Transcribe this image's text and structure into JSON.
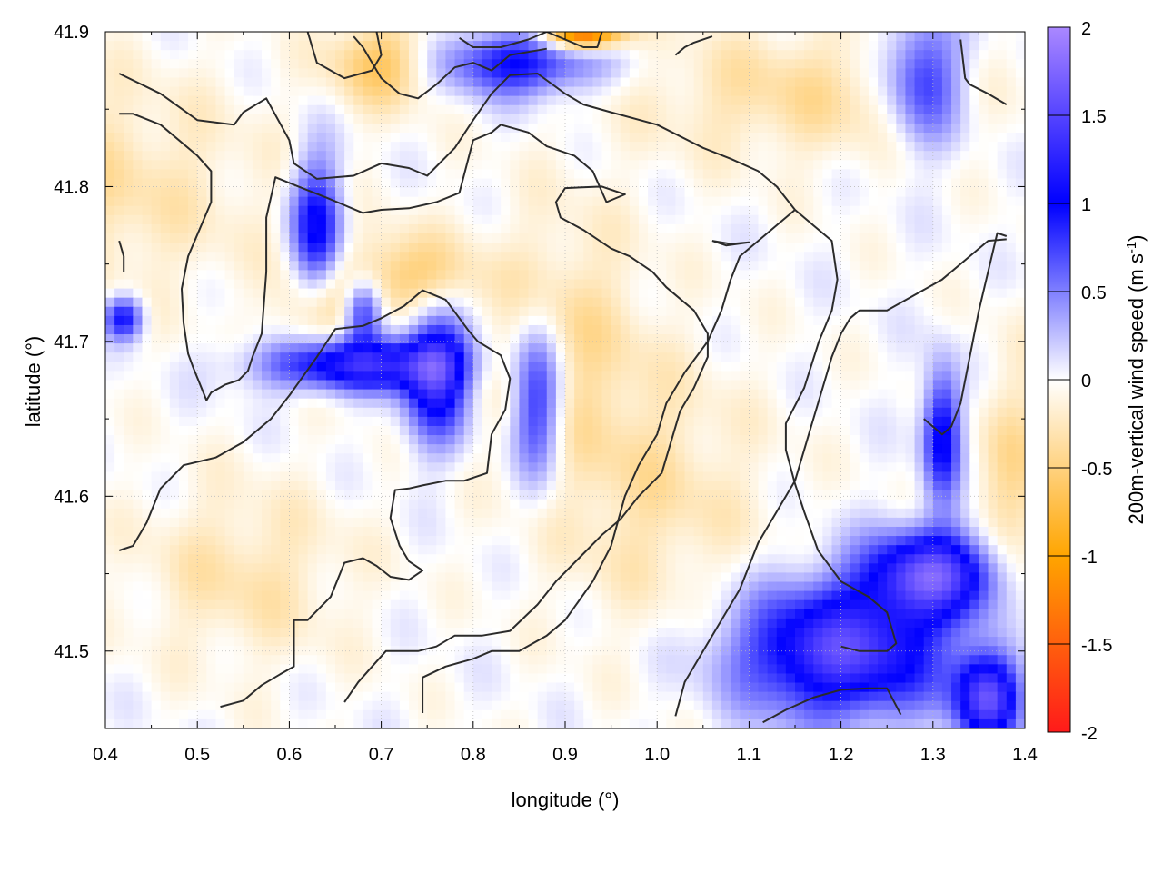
{
  "chart_data": {
    "type": "heatmap",
    "title": "",
    "xlabel": "longitude (°)",
    "ylabel": "latitude (°)",
    "colorbar_label": "200m-vertical wind speed (m s",
    "colorbar_label_sup": "-1",
    "colorbar_label_end": ")",
    "xlim": [
      0.4,
      1.4
    ],
    "ylim": [
      41.45,
      41.9
    ],
    "x_ticks": [
      0.4,
      0.5,
      0.6,
      0.7,
      0.8,
      0.9,
      1.0,
      1.1,
      1.2,
      1.3,
      1.4
    ],
    "x_tick_labels": [
      "0.4",
      "0.5",
      "0.6",
      "0.7",
      "0.8",
      "0.9",
      "1.0",
      "1.1",
      "1.2",
      "1.3",
      "1.4"
    ],
    "y_ticks": [
      41.5,
      41.6,
      41.7,
      41.8,
      41.9
    ],
    "y_tick_labels": [
      "41.5",
      "41.6",
      "41.7",
      "41.8",
      "41.9"
    ],
    "colorbar_range": [
      -2,
      2
    ],
    "colorbar_ticks": [
      2,
      1.5,
      1,
      0.5,
      0,
      -0.5,
      -1,
      -1.5,
      -2
    ],
    "colorbar_tick_labels": [
      "2",
      "1.5",
      "1",
      "0.5",
      "0",
      "-0.5",
      "-1",
      "-1.5",
      "-2"
    ],
    "colormap": [
      {
        "value": -2,
        "color": "#ff1a1a"
      },
      {
        "value": -1,
        "color": "#ffa500"
      },
      {
        "value": 0,
        "color": "#ffffff"
      },
      {
        "value": 1,
        "color": "#0000ff"
      },
      {
        "value": 2,
        "color": "#aa88ff"
      }
    ],
    "grid": true,
    "features": [
      {
        "lon": 0.67,
        "lat": 41.685,
        "sx": 0.07,
        "sy": 0.012,
        "amp": 1.3
      },
      {
        "lon": 0.63,
        "lat": 41.77,
        "sx": 0.02,
        "sy": 0.035,
        "amp": 1.1
      },
      {
        "lon": 0.68,
        "lat": 41.72,
        "sx": 0.015,
        "sy": 0.015,
        "amp": 1.0
      },
      {
        "lon": 0.76,
        "lat": 41.68,
        "sx": 0.025,
        "sy": 0.03,
        "amp": 1.3
      },
      {
        "lon": 0.87,
        "lat": 41.66,
        "sx": 0.02,
        "sy": 0.035,
        "amp": 1.0
      },
      {
        "lon": 0.42,
        "lat": 41.715,
        "sx": 0.015,
        "sy": 0.01,
        "amp": 1.0
      },
      {
        "lon": 0.85,
        "lat": 41.88,
        "sx": 0.06,
        "sy": 0.015,
        "amp": 1.0
      },
      {
        "lon": 1.2,
        "lat": 41.5,
        "sx": 0.08,
        "sy": 0.03,
        "amp": 1.5
      },
      {
        "lon": 1.3,
        "lat": 41.55,
        "sx": 0.05,
        "sy": 0.02,
        "amp": 1.5
      },
      {
        "lon": 1.36,
        "lat": 41.47,
        "sx": 0.025,
        "sy": 0.02,
        "amp": 1.5
      },
      {
        "lon": 1.31,
        "lat": 41.64,
        "sx": 0.015,
        "sy": 0.03,
        "amp": 1.1
      },
      {
        "lon": 1.29,
        "lat": 41.87,
        "sx": 0.03,
        "sy": 0.03,
        "amp": 0.9
      },
      {
        "lon": 0.63,
        "lat": 41.72,
        "sx": 0.03,
        "sy": 0.025,
        "amp": -0.5
      },
      {
        "lon": 0.73,
        "lat": 41.74,
        "sx": 0.05,
        "sy": 0.02,
        "amp": -0.6
      },
      {
        "lon": 0.92,
        "lat": 41.9,
        "sx": 0.03,
        "sy": 0.008,
        "amp": -1.6
      },
      {
        "lon": 0.7,
        "lat": 41.88,
        "sx": 0.04,
        "sy": 0.02,
        "amp": -0.6
      },
      {
        "lon": 0.35,
        "lat": 41.8,
        "sx": 0.15,
        "sy": 0.05,
        "amp": -0.35
      },
      {
        "lon": 0.9,
        "lat": 41.7,
        "sx": 0.06,
        "sy": 0.06,
        "amp": -0.35
      },
      {
        "lon": 1.0,
        "lat": 41.6,
        "sx": 0.08,
        "sy": 0.06,
        "amp": -0.3
      },
      {
        "lon": 1.15,
        "lat": 41.86,
        "sx": 0.12,
        "sy": 0.03,
        "amp": -0.35
      },
      {
        "lon": 1.39,
        "lat": 41.6,
        "sx": 0.03,
        "sy": 0.06,
        "amp": -0.4
      },
      {
        "lon": 0.55,
        "lat": 41.55,
        "sx": 0.08,
        "sy": 0.04,
        "amp": -0.3
      }
    ],
    "contours": [
      [
        [
          0.415,
          41.873
        ],
        [
          0.46,
          41.86
        ],
        [
          0.5,
          41.843
        ],
        [
          0.54,
          41.84
        ],
        [
          0.55,
          41.848
        ],
        [
          0.575,
          41.857
        ],
        [
          0.6,
          41.83
        ],
        [
          0.605,
          41.815
        ],
        [
          0.63,
          41.805
        ],
        [
          0.67,
          41.807
        ],
        [
          0.7,
          41.815
        ],
        [
          0.73,
          41.812
        ],
        [
          0.75,
          41.807
        ],
        [
          0.78,
          41.825
        ],
        [
          0.8,
          41.843
        ],
        [
          0.82,
          41.86
        ],
        [
          0.84,
          41.872
        ],
        [
          0.87,
          41.873
        ],
        [
          0.9,
          41.86
        ],
        [
          0.92,
          41.853
        ],
        [
          0.95,
          41.848
        ],
        [
          1.0,
          41.84
        ],
        [
          1.05,
          41.825
        ],
        [
          1.08,
          41.818
        ],
        [
          1.11,
          41.81
        ],
        [
          1.13,
          41.8
        ],
        [
          1.15,
          41.785
        ],
        [
          1.17,
          41.775
        ],
        [
          1.19,
          41.765
        ],
        [
          1.196,
          41.74
        ],
        [
          1.19,
          41.72
        ],
        [
          1.176,
          41.7
        ],
        [
          1.16,
          41.67
        ],
        [
          1.14,
          41.647
        ],
        [
          1.14,
          41.63
        ],
        [
          1.15,
          41.608
        ],
        [
          1.16,
          41.59
        ],
        [
          1.175,
          41.565
        ],
        [
          1.2,
          41.545
        ],
        [
          1.23,
          41.535
        ],
        [
          1.25,
          41.525
        ],
        [
          1.26,
          41.505
        ],
        [
          1.25,
          41.5
        ],
        [
          1.22,
          41.5
        ],
        [
          1.2,
          41.503
        ]
      ],
      [
        [
          0.415,
          41.847
        ],
        [
          0.43,
          41.847
        ],
        [
          0.46,
          41.84
        ],
        [
          0.5,
          41.82
        ],
        [
          0.515,
          41.81
        ],
        [
          0.515,
          41.79
        ],
        [
          0.49,
          41.755
        ],
        [
          0.483,
          41.734
        ],
        [
          0.485,
          41.712
        ],
        [
          0.49,
          41.692
        ],
        [
          0.495,
          41.684
        ],
        [
          0.51,
          41.662
        ],
        [
          0.515,
          41.667
        ],
        [
          0.53,
          41.672
        ],
        [
          0.545,
          41.675
        ],
        [
          0.555,
          41.681
        ],
        [
          0.56,
          41.69
        ],
        [
          0.57,
          41.705
        ],
        [
          0.575,
          41.745
        ],
        [
          0.575,
          41.78
        ],
        [
          0.585,
          41.806
        ],
        [
          0.61,
          41.8
        ],
        [
          0.64,
          41.793
        ],
        [
          0.68,
          41.783
        ],
        [
          0.7,
          41.785
        ],
        [
          0.73,
          41.786
        ],
        [
          0.76,
          41.79
        ],
        [
          0.785,
          41.796
        ],
        [
          0.8,
          41.83
        ],
        [
          0.82,
          41.835
        ],
        [
          0.83,
          41.84
        ],
        [
          0.86,
          41.835
        ],
        [
          0.88,
          41.826
        ],
        [
          0.91,
          41.82
        ],
        [
          0.93,
          41.81
        ],
        [
          0.945,
          41.79
        ],
        [
          0.965,
          41.795
        ],
        [
          0.94,
          41.8
        ],
        [
          0.9,
          41.799
        ],
        [
          0.89,
          41.79
        ],
        [
          0.895,
          41.78
        ],
        [
          0.92,
          41.772
        ],
        [
          0.95,
          41.76
        ],
        [
          0.97,
          41.755
        ],
        [
          0.995,
          41.745
        ],
        [
          1.01,
          41.735
        ],
        [
          1.04,
          41.72
        ],
        [
          1.055,
          41.705
        ],
        [
          1.055,
          41.69
        ],
        [
          1.04,
          41.67
        ],
        [
          1.025,
          41.655
        ],
        [
          1.015,
          41.635
        ],
        [
          1.005,
          41.615
        ],
        [
          0.98,
          41.6
        ],
        [
          0.96,
          41.585
        ],
        [
          0.94,
          41.575
        ],
        [
          0.915,
          41.56
        ],
        [
          0.89,
          41.545
        ],
        [
          0.87,
          41.53
        ],
        [
          0.84,
          41.513
        ],
        [
          0.81,
          41.51
        ],
        [
          0.78,
          41.51
        ],
        [
          0.76,
          41.503
        ],
        [
          0.74,
          41.5
        ],
        [
          0.72,
          41.5
        ],
        [
          0.705,
          41.5
        ],
        [
          0.69,
          41.49
        ],
        [
          0.675,
          41.48
        ],
        [
          0.66,
          41.467
        ]
      ],
      [
        [
          0.415,
          41.565
        ],
        [
          0.43,
          41.568
        ],
        [
          0.445,
          41.583
        ],
        [
          0.46,
          41.605
        ],
        [
          0.485,
          41.62
        ],
        [
          0.52,
          41.625
        ],
        [
          0.55,
          41.635
        ],
        [
          0.58,
          41.65
        ],
        [
          0.6,
          41.665
        ],
        [
          0.63,
          41.69
        ],
        [
          0.65,
          41.708
        ],
        [
          0.68,
          41.71
        ],
        [
          0.7,
          41.715
        ],
        [
          0.725,
          41.723
        ],
        [
          0.745,
          41.733
        ],
        [
          0.77,
          41.727
        ],
        [
          0.785,
          41.715
        ],
        [
          0.795,
          41.707
        ],
        [
          0.805,
          41.7
        ],
        [
          0.83,
          41.691
        ],
        [
          0.84,
          41.676
        ],
        [
          0.835,
          41.656
        ],
        [
          0.82,
          41.64
        ],
        [
          0.815,
          41.615
        ],
        [
          0.79,
          41.61
        ],
        [
          0.77,
          41.61
        ],
        [
          0.745,
          41.607
        ],
        [
          0.73,
          41.605
        ],
        [
          0.715,
          41.604
        ],
        [
          0.71,
          41.586
        ],
        [
          0.72,
          41.568
        ],
        [
          0.73,
          41.558
        ],
        [
          0.745,
          41.552
        ],
        [
          0.73,
          41.546
        ],
        [
          0.71,
          41.548
        ],
        [
          0.695,
          41.555
        ],
        [
          0.68,
          41.56
        ],
        [
          0.66,
          41.557
        ],
        [
          0.645,
          41.535
        ],
        [
          0.62,
          41.52
        ],
        [
          0.605,
          41.52
        ],
        [
          0.605,
          41.49
        ],
        [
          0.59,
          41.485
        ],
        [
          0.57,
          41.478
        ],
        [
          0.55,
          41.468
        ],
        [
          0.525,
          41.464
        ]
      ],
      [
        [
          0.745,
          41.46
        ],
        [
          0.745,
          41.483
        ],
        [
          0.77,
          41.49
        ],
        [
          0.8,
          41.495
        ],
        [
          0.82,
          41.5
        ],
        [
          0.85,
          41.5
        ],
        [
          0.88,
          41.51
        ],
        [
          0.9,
          41.52
        ],
        [
          0.93,
          41.545
        ],
        [
          0.95,
          41.568
        ],
        [
          0.965,
          41.6
        ],
        [
          0.98,
          41.62
        ],
        [
          1.0,
          41.64
        ],
        [
          1.01,
          41.66
        ],
        [
          1.03,
          41.68
        ],
        [
          1.055,
          41.7
        ],
        [
          1.07,
          41.72
        ],
        [
          1.08,
          41.74
        ],
        [
          1.09,
          41.755
        ],
        [
          1.12,
          41.77
        ],
        [
          1.15,
          41.785
        ]
      ],
      [
        [
          1.02,
          41.458
        ],
        [
          1.03,
          41.48
        ],
        [
          1.05,
          41.5
        ],
        [
          1.07,
          41.52
        ],
        [
          1.09,
          41.54
        ],
        [
          1.11,
          41.57
        ],
        [
          1.13,
          41.59
        ],
        [
          1.15,
          41.61
        ],
        [
          1.16,
          41.63
        ],
        [
          1.17,
          41.65
        ],
        [
          1.18,
          41.67
        ],
        [
          1.19,
          41.69
        ],
        [
          1.2,
          41.705
        ],
        [
          1.21,
          41.715
        ],
        [
          1.22,
          41.72
        ],
        [
          1.25,
          41.72
        ],
        [
          1.28,
          41.73
        ],
        [
          1.31,
          41.74
        ],
        [
          1.34,
          41.755
        ],
        [
          1.36,
          41.765
        ],
        [
          1.38,
          41.766
        ]
      ],
      [
        [
          1.115,
          41.454
        ],
        [
          1.14,
          41.462
        ],
        [
          1.17,
          41.47
        ],
        [
          1.2,
          41.475
        ],
        [
          1.23,
          41.476
        ],
        [
          1.25,
          41.476
        ],
        [
          1.265,
          41.459
        ]
      ],
      [
        [
          1.29,
          41.65
        ],
        [
          1.3,
          41.645
        ],
        [
          1.31,
          41.64
        ],
        [
          1.32,
          41.645
        ],
        [
          1.33,
          41.66
        ],
        [
          1.34,
          41.69
        ],
        [
          1.35,
          41.72
        ],
        [
          1.36,
          41.745
        ],
        [
          1.37,
          41.77
        ],
        [
          1.38,
          41.768
        ]
      ],
      [
        [
          0.67,
          41.897
        ],
        [
          0.68,
          41.89
        ],
        [
          0.7,
          41.87
        ],
        [
          0.72,
          41.86
        ],
        [
          0.74,
          41.857
        ],
        [
          0.76,
          41.866
        ],
        [
          0.78,
          41.877
        ],
        [
          0.8,
          41.88
        ],
        [
          0.82,
          41.875
        ],
        [
          0.84,
          41.885
        ],
        [
          0.86,
          41.887
        ],
        [
          0.88,
          41.889
        ]
      ],
      [
        [
          0.62,
          41.9
        ],
        [
          0.63,
          41.88
        ],
        [
          0.66,
          41.87
        ],
        [
          0.69,
          41.875
        ],
        [
          0.7,
          41.885
        ],
        [
          0.695,
          41.9
        ]
      ],
      [
        [
          0.785,
          41.896
        ],
        [
          0.8,
          41.89
        ],
        [
          0.83,
          41.89
        ],
        [
          0.86,
          41.895
        ],
        [
          0.88,
          41.9
        ],
        [
          0.9,
          41.895
        ],
        [
          0.92,
          41.89
        ],
        [
          0.935,
          41.89
        ],
        [
          0.94,
          41.9
        ]
      ],
      [
        [
          1.02,
          41.885
        ],
        [
          1.03,
          41.89
        ],
        [
          1.04,
          41.893
        ],
        [
          1.06,
          41.897
        ]
      ],
      [
        [
          1.06,
          41.765
        ],
        [
          1.08,
          41.763
        ],
        [
          1.1,
          41.764
        ],
        [
          1.075,
          41.762
        ],
        [
          1.06,
          41.765
        ]
      ],
      [
        [
          1.33,
          41.895
        ],
        [
          1.335,
          41.87
        ],
        [
          1.34,
          41.866
        ],
        [
          1.36,
          41.86
        ],
        [
          1.38,
          41.853
        ]
      ],
      [
        [
          0.415,
          41.765
        ],
        [
          0.42,
          41.755
        ],
        [
          0.42,
          41.745
        ]
      ]
    ]
  }
}
